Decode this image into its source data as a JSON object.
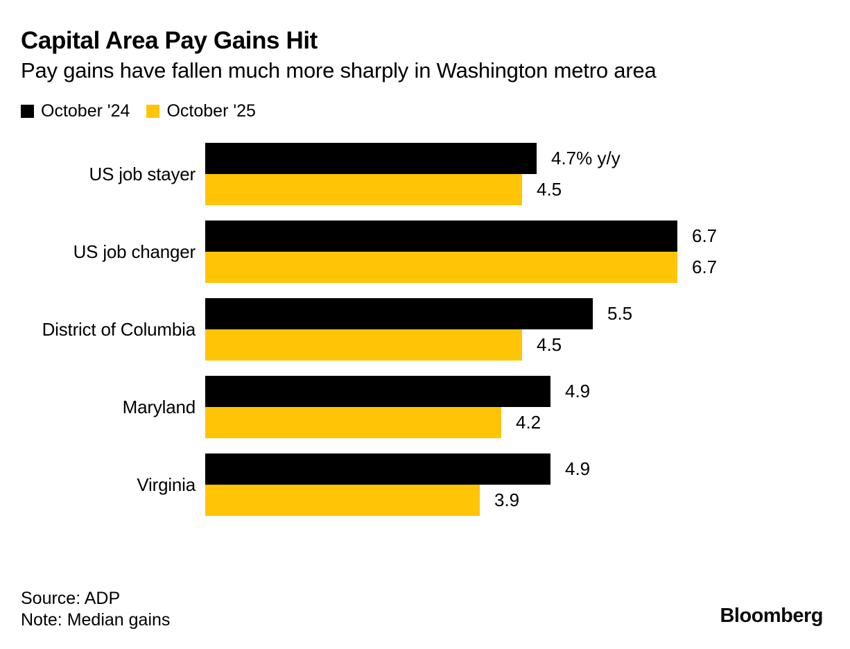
{
  "header": {
    "title": "Capital Area Pay Gains Hit",
    "subtitle": "Pay gains have fallen much more sharply in Washington metro area"
  },
  "chart_data": {
    "type": "bar",
    "orientation": "horizontal",
    "title": "Capital Area Pay Gains Hit",
    "subtitle": "Pay gains have fallen much more sharply in Washington metro area",
    "categories": [
      "US job stayer",
      "US job changer",
      "District of Columbia",
      "Maryland",
      "Virginia"
    ],
    "series": [
      {
        "name": "October '24",
        "color": "#000000",
        "values": [
          4.7,
          6.7,
          5.5,
          4.9,
          4.9
        ],
        "labels": [
          "4.7% y/y",
          "6.7",
          "5.5",
          "4.9",
          "4.9"
        ]
      },
      {
        "name": "October '25",
        "color": "#FFC405",
        "values": [
          4.5,
          6.7,
          4.5,
          4.2,
          3.9
        ],
        "labels": [
          "4.5",
          "6.7",
          "4.5",
          "4.2",
          "3.9"
        ]
      }
    ],
    "xlim": [
      0,
      7
    ],
    "value_unit": "% y/y",
    "grid": false,
    "legend_position": "top-left"
  },
  "footer": {
    "source": "Source: ADP",
    "note": "Note: Median gains",
    "brand": "Bloomberg"
  },
  "colors": {
    "october_24": "#000000",
    "october_25": "#FFC405",
    "background": "#FFFFFF",
    "text": "#000000"
  }
}
